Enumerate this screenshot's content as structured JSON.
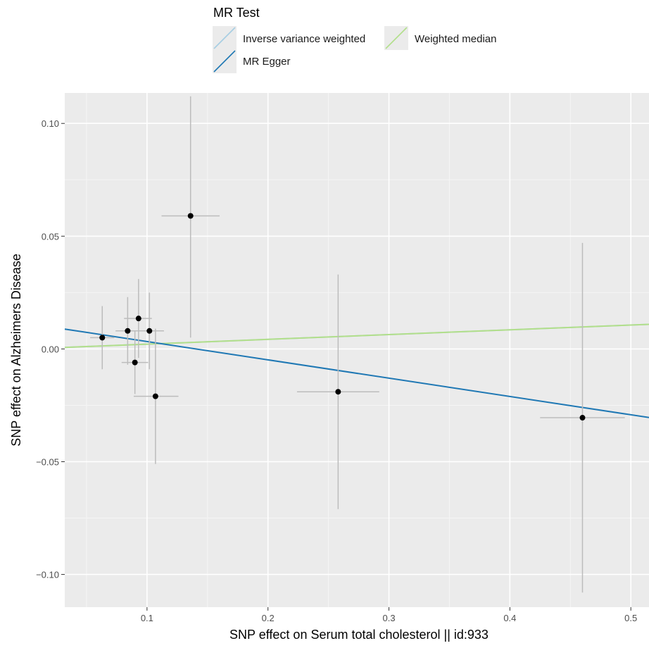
{
  "chart_data": {
    "type": "scatter",
    "xlabel": "SNP effect on Serum total cholesterol || id:933",
    "ylabel": "SNP effect on Alzheimers Disease",
    "xlim": [
      0.032,
      0.515
    ],
    "ylim": [
      -0.1145,
      0.1135
    ],
    "x_ticks": [
      0.1,
      0.2,
      0.3,
      0.4,
      0.5
    ],
    "x_tick_labels": [
      "0.1",
      "0.2",
      "0.3",
      "0.4",
      "0.5"
    ],
    "y_ticks": [
      -0.1,
      -0.05,
      0.0,
      0.05,
      0.1
    ],
    "y_tick_labels": [
      "−0.10",
      "−0.05",
      "0.00",
      "0.05",
      "0.10"
    ],
    "grid": true,
    "legend": {
      "title": "MR Test",
      "placement": "top",
      "entries": [
        {
          "label": "Inverse variance weighted",
          "color": "#a6cee3"
        },
        {
          "label": "Weighted median",
          "color": "#b2df8a"
        },
        {
          "label": "MR Egger",
          "color": "#1f78b4"
        }
      ]
    },
    "points": [
      {
        "x": 0.063,
        "y": 0.005,
        "x_lo": 0.053,
        "x_hi": 0.073,
        "y_lo": -0.009,
        "y_hi": 0.019
      },
      {
        "x": 0.084,
        "y": 0.008,
        "x_lo": 0.074,
        "x_hi": 0.094,
        "y_lo": -0.007,
        "y_hi": 0.023
      },
      {
        "x": 0.09,
        "y": -0.006,
        "x_lo": 0.079,
        "x_hi": 0.101,
        "y_lo": -0.02,
        "y_hi": 0.008
      },
      {
        "x": 0.093,
        "y": 0.0135,
        "x_lo": 0.081,
        "x_hi": 0.104,
        "y_lo": -0.004,
        "y_hi": 0.031
      },
      {
        "x": 0.102,
        "y": 0.008,
        "x_lo": 0.091,
        "x_hi": 0.114,
        "y_lo": -0.009,
        "y_hi": 0.025
      },
      {
        "x": 0.107,
        "y": -0.021,
        "x_lo": 0.089,
        "x_hi": 0.126,
        "y_lo": -0.051,
        "y_hi": 0.009
      },
      {
        "x": 0.136,
        "y": 0.059,
        "x_lo": 0.112,
        "x_hi": 0.16,
        "y_lo": 0.005,
        "y_hi": 0.112
      },
      {
        "x": 0.258,
        "y": -0.019,
        "x_lo": 0.224,
        "x_hi": 0.292,
        "y_lo": -0.071,
        "y_hi": 0.033
      },
      {
        "x": 0.46,
        "y": -0.0305,
        "x_lo": 0.425,
        "x_hi": 0.495,
        "y_lo": -0.108,
        "y_hi": 0.047
      }
    ],
    "lines": [
      {
        "method": "Inverse variance weighted",
        "color": "#a6cee3",
        "slope": 0.0212,
        "intercept": 0.0
      },
      {
        "method": "Weighted median",
        "color": "#b2df8a",
        "slope": 0.0212,
        "intercept": 0.0
      },
      {
        "method": "MR Egger",
        "color": "#1f78b4",
        "slope": -0.0812,
        "intercept": 0.0114
      }
    ]
  }
}
